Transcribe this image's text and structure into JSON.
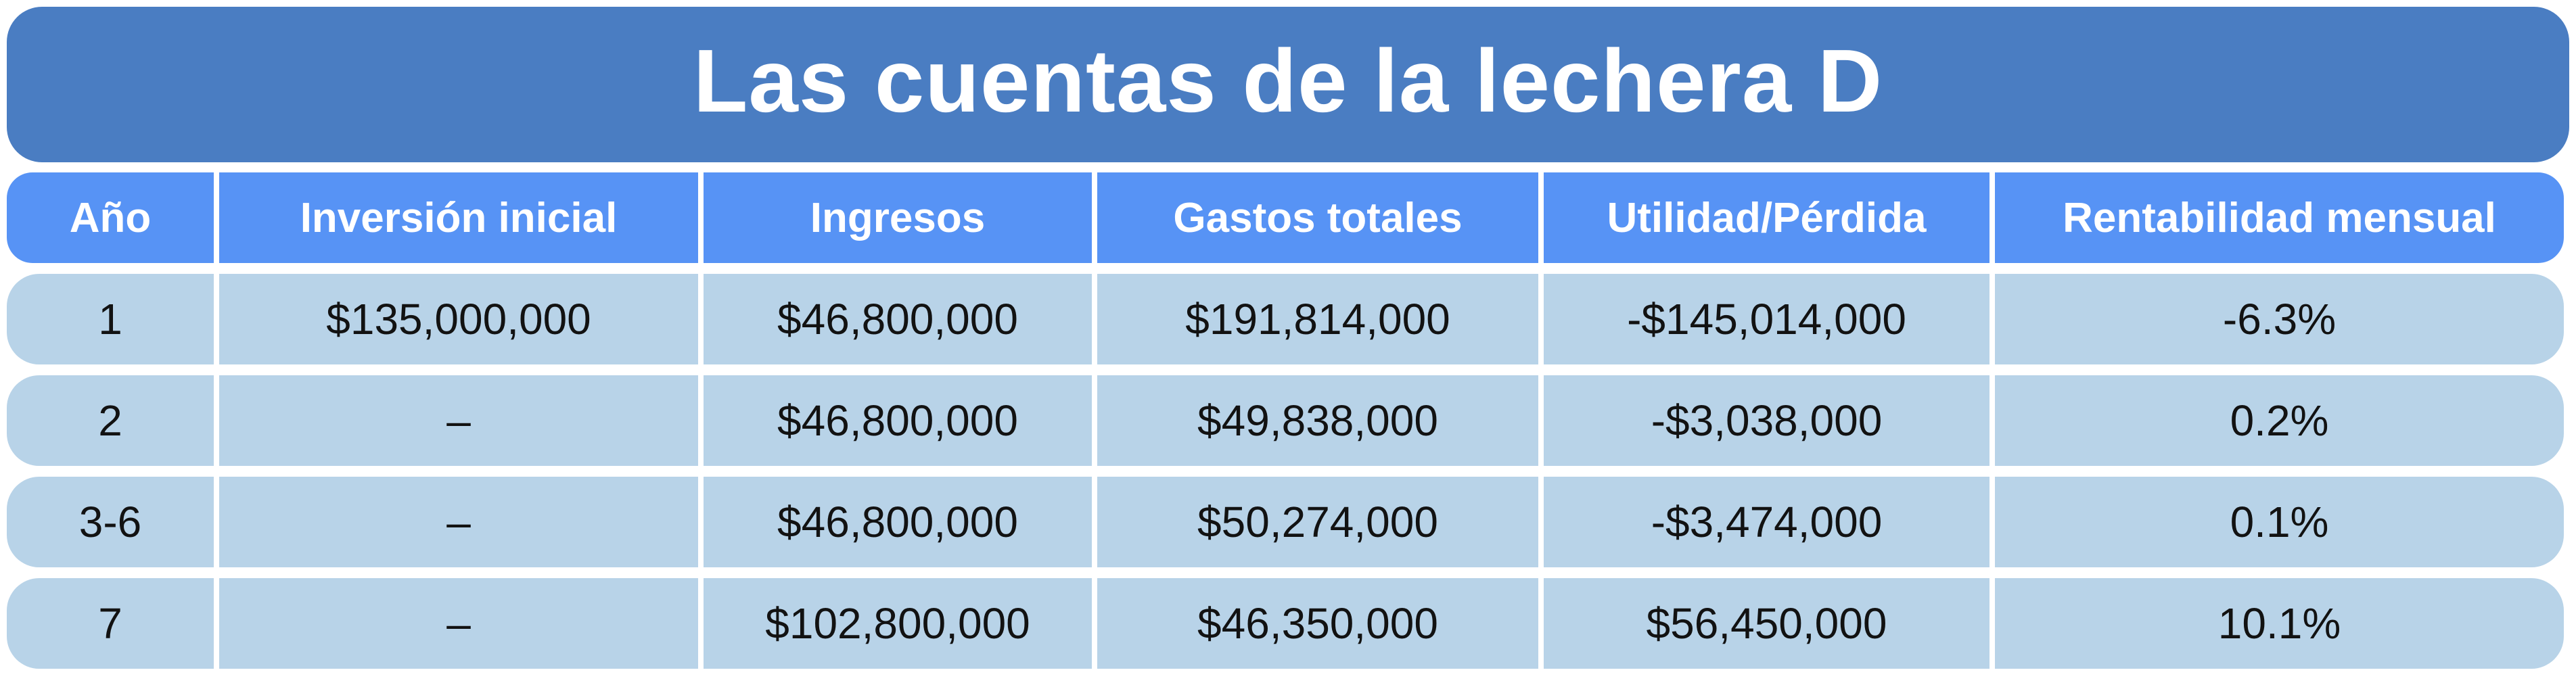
{
  "title": "Las cuentas de la lechera D",
  "colors": {
    "title_bar": "#4a7dc2",
    "header_row": "#5793f5",
    "data_row": "#b8d3e8",
    "header_text": "#ffffff",
    "data_text": "#121212",
    "divider": "#ffffff",
    "background": "#ffffff"
  },
  "chart_data": {
    "type": "table",
    "title": "Las cuentas de la lechera D",
    "columns": [
      "Año",
      "Inversión inicial",
      "Ingresos",
      "Gastos totales",
      "Utilidad/Pérdida",
      "Rentabilidad mensual"
    ],
    "rows": [
      [
        "1",
        "$135,000,000",
        "$46,800,000",
        "$191,814,000",
        "-$145,014,000",
        "-6.3%"
      ],
      [
        "2",
        "–",
        "$46,800,000",
        "$49,838,000",
        "-$3,038,000",
        "0.2%"
      ],
      [
        "3-6",
        "–",
        "$46,800,000",
        "$50,274,000",
        "-$3,474,000",
        "0.1%"
      ],
      [
        "7",
        "–",
        "$102,800,000",
        "$46,350,000",
        "$56,450,000",
        "10.1%"
      ]
    ]
  }
}
